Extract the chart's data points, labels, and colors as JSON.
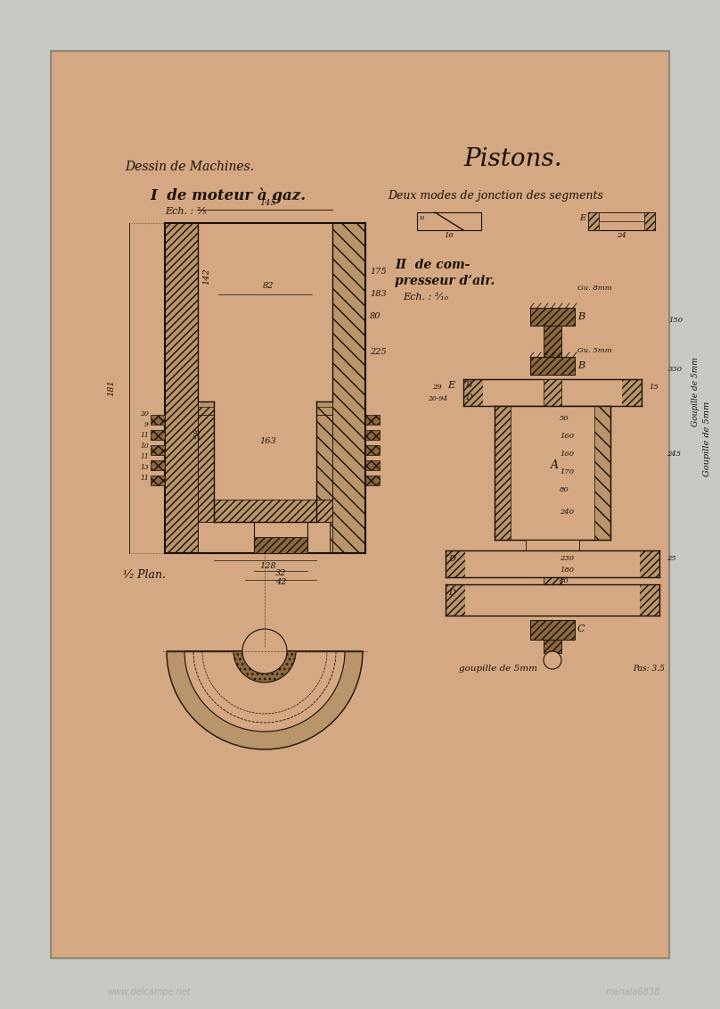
{
  "bg_outer": "#c8c8c4",
  "bg_paper": "#d4a882",
  "ink": "#1a1008",
  "hatch_fc": "#b8956a",
  "dark_fc": "#8a6840",
  "open_fc": "#d4a882",
  "title_pistons": "Pistons.",
  "title_dessin": "Dessin de Machines.",
  "title_I": "I  de moteur à gaz.",
  "ech_I": "Ech. : ²⁄₅",
  "demi_plan": "¹⁄₂ Plan.",
  "deux_modes": "Deux modes de jonction des segments",
  "title_II_1": "II  de com-",
  "title_II_2": "presseur d’air.",
  "ech_II": "Ech. : ³⁄₁₀",
  "goupi_top": "Goupille de 5mm",
  "goupi_bot": "goupille de 5mm",
  "pas": "Pas: 3.5"
}
